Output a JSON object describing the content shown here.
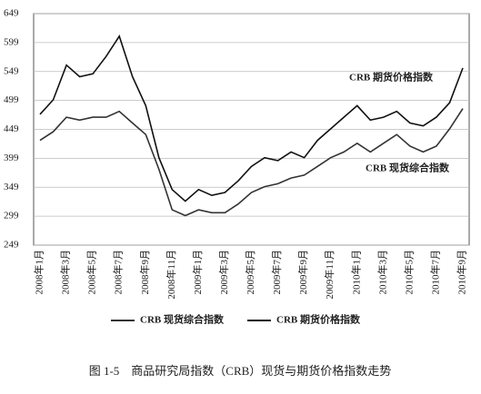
{
  "chart_data": {
    "type": "line",
    "categories": [
      "2008年1月",
      null,
      "2008年3月",
      null,
      "2008年5月",
      null,
      "2008年7月",
      null,
      "2008年9月",
      null,
      "2008年11月",
      null,
      "2009年1月",
      null,
      "2009年3月",
      null,
      "2009年5月",
      null,
      "2009年7月",
      null,
      "2009年9月",
      null,
      "2009年11月",
      null,
      "2010年1月",
      null,
      "2010年3月",
      null,
      "2010年5月",
      null,
      "2010年7月",
      null,
      "2010年9月"
    ],
    "series": [
      {
        "name": "CRB 现货综合指数",
        "color": "#333333",
        "values": [
          430,
          445,
          470,
          465,
          470,
          470,
          480,
          460,
          440,
          380,
          310,
          300,
          310,
          305,
          305,
          320,
          340,
          350,
          355,
          365,
          370,
          385,
          400,
          410,
          425,
          410,
          425,
          440,
          420,
          410,
          420,
          450,
          485
        ]
      },
      {
        "name": "CRB 期货价格指数",
        "color": "#111111",
        "values": [
          475,
          500,
          560,
          540,
          545,
          575,
          610,
          540,
          490,
          400,
          345,
          325,
          345,
          335,
          340,
          360,
          385,
          400,
          395,
          410,
          400,
          430,
          450,
          470,
          490,
          465,
          470,
          480,
          460,
          455,
          470,
          495,
          555
        ]
      }
    ],
    "annotations": [
      "CRB 期货价格指数",
      "CRB 现货综合指数"
    ],
    "ylim": [
      249,
      649
    ],
    "yticks": [
      249,
      299,
      349,
      399,
      449,
      499,
      549,
      599,
      649
    ],
    "grid": true,
    "legend": "bottom",
    "caption": "图 1-5　商品研究局指数（CRB）现货与期货价格指数走势"
  }
}
